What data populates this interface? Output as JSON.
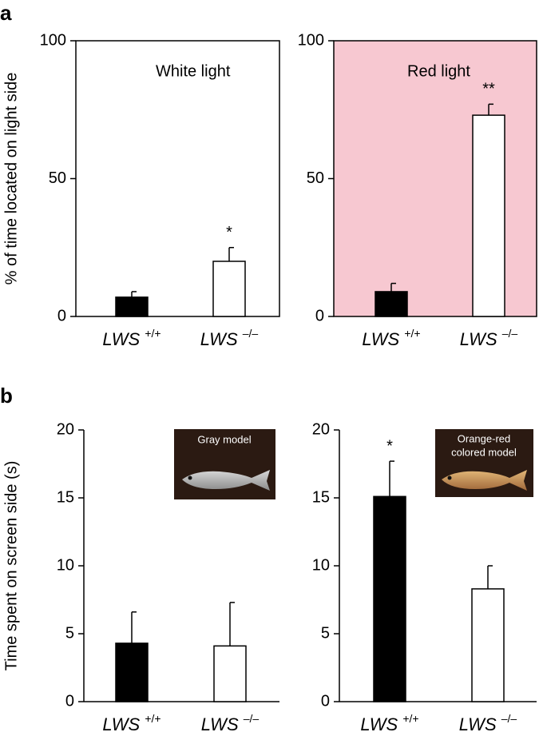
{
  "chart_data": [
    {
      "type": "bar",
      "panel_label": "a",
      "ylabel": "% of time located on light side",
      "title": "White light",
      "categories": [
        "LWS +/+",
        "LWS –/–"
      ],
      "values": [
        7,
        20
      ],
      "errors": [
        2,
        5
      ],
      "colors": [
        "#000000",
        "#ffffff"
      ],
      "significance": [
        null,
        "*"
      ],
      "ylim": [
        0,
        100
      ],
      "yticks": [
        0,
        50,
        100
      ],
      "frame": true,
      "background": "#ffffff"
    },
    {
      "type": "bar",
      "title": "Red light",
      "categories": [
        "LWS +/+",
        "LWS –/–"
      ],
      "values": [
        9,
        73
      ],
      "errors": [
        3,
        4
      ],
      "colors": [
        "#000000",
        "#ffffff"
      ],
      "significance": [
        null,
        "**"
      ],
      "ylim": [
        0,
        100
      ],
      "yticks": [
        0,
        50,
        100
      ],
      "frame": true,
      "background": "#f7c8d1"
    },
    {
      "type": "bar",
      "panel_label": "b",
      "ylabel": "Time spent on screen side (s)",
      "inset_label": [
        "Gray model"
      ],
      "categories": [
        "LWS +/+",
        "LWS –/–"
      ],
      "values": [
        4.3,
        4.1
      ],
      "errors": [
        2.3,
        3.2
      ],
      "colors": [
        "#000000",
        "#ffffff"
      ],
      "ylim": [
        0,
        20
      ],
      "yticks": [
        0,
        5,
        10,
        15,
        20
      ],
      "frame": false
    },
    {
      "type": "bar",
      "inset_label": [
        "Orange-red",
        "colored model"
      ],
      "categories": [
        "LWS +/+",
        "LWS –/–"
      ],
      "values": [
        15.1,
        8.3
      ],
      "errors": [
        2.6,
        1.7
      ],
      "colors": [
        "#000000",
        "#ffffff"
      ],
      "significance": [
        "*",
        null
      ],
      "ylim": [
        0,
        20
      ],
      "yticks": [
        0,
        5,
        10,
        15,
        20
      ],
      "frame": false
    }
  ]
}
